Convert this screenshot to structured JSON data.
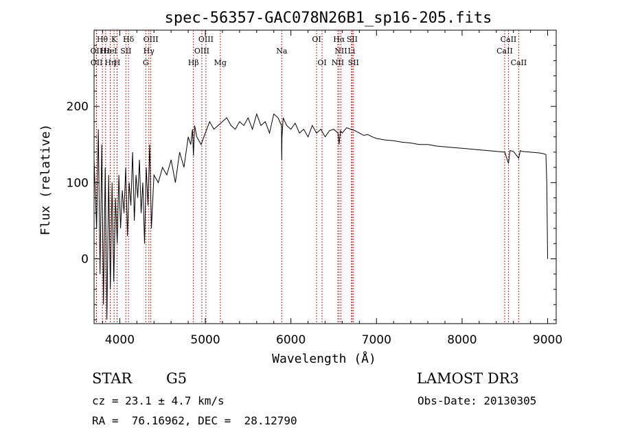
{
  "chart_data": {
    "type": "line",
    "title": "spec-56357-GAC078N26B1_sp16-205.fits",
    "xlabel": "Wavelength (Å)",
    "ylabel": "Flux (relative)",
    "xlim": [
      3700,
      9100
    ],
    "ylim": [
      -85,
      300
    ],
    "xticks": [
      4000,
      5000,
      6000,
      7000,
      8000,
      9000
    ],
    "xtick_labels": [
      "4000",
      "5000",
      "6000",
      "7000",
      "8000",
      "9000"
    ],
    "yticks": [
      0,
      100,
      200
    ],
    "ytick_labels": [
      "0",
      "100",
      "200"
    ],
    "grid": false,
    "series": [
      {
        "name": "spectrum",
        "x": [
          3700,
          3730,
          3750,
          3770,
          3790,
          3810,
          3830,
          3850,
          3870,
          3890,
          3910,
          3930,
          3950,
          3970,
          3990,
          4010,
          4030,
          4050,
          4070,
          4090,
          4110,
          4130,
          4150,
          4170,
          4190,
          4210,
          4230,
          4250,
          4270,
          4290,
          4310,
          4330,
          4350,
          4370,
          4400,
          4450,
          4500,
          4550,
          4600,
          4650,
          4700,
          4750,
          4800,
          4830,
          4850,
          4861,
          4875,
          4900,
          4950,
          5000,
          5050,
          5100,
          5150,
          5200,
          5250,
          5300,
          5350,
          5400,
          5450,
          5500,
          5550,
          5600,
          5650,
          5700,
          5750,
          5800,
          5850,
          5890,
          5893,
          5896,
          5910,
          5950,
          6000,
          6050,
          6100,
          6150,
          6200,
          6250,
          6300,
          6350,
          6400,
          6450,
          6500,
          6550,
          6563,
          6580,
          6600,
          6650,
          6700,
          6750,
          6800,
          6850,
          6900,
          6950,
          7000,
          7100,
          7200,
          7300,
          7400,
          7500,
          7600,
          7700,
          7800,
          7900,
          8000,
          8100,
          8200,
          8300,
          8400,
          8500,
          8542,
          8560,
          8600,
          8662,
          8680,
          8700,
          8800,
          8900,
          8950,
          8980,
          8990,
          9000
        ],
        "y": [
          130,
          40,
          170,
          -20,
          150,
          -60,
          120,
          -80,
          110,
          -40,
          100,
          -30,
          80,
          20,
          110,
          40,
          90,
          60,
          120,
          30,
          100,
          70,
          140,
          50,
          110,
          80,
          130,
          60,
          100,
          20,
          120,
          70,
          150,
          40,
          110,
          100,
          120,
          110,
          130,
          100,
          140,
          120,
          160,
          150,
          170,
          135,
          175,
          160,
          150,
          165,
          180,
          170,
          175,
          180,
          185,
          175,
          170,
          180,
          175,
          185,
          170,
          190,
          175,
          180,
          165,
          190,
          185,
          175,
          130,
          160,
          185,
          175,
          170,
          178,
          165,
          170,
          160,
          175,
          165,
          170,
          160,
          168,
          170,
          165,
          150,
          168,
          165,
          172,
          170,
          168,
          165,
          162,
          163,
          160,
          158,
          156,
          155,
          153,
          152,
          150,
          150,
          148,
          147,
          146,
          145,
          144,
          143,
          142,
          141,
          140,
          125,
          142,
          141,
          132,
          142,
          141,
          140,
          139,
          138,
          137,
          100,
          0
        ]
      }
    ],
    "lines": [
      {
        "label": "Hθ",
        "x": 3797,
        "row": 1
      },
      {
        "label": "OII",
        "x": 3727,
        "row": 2
      },
      {
        "label": "OII",
        "x": 3729,
        "row": 3
      },
      {
        "label": "Hε",
        "x": 3835,
        "row": 2
      },
      {
        "label": "Hη",
        "x": 3889,
        "row": 3
      },
      {
        "label": "K",
        "x": 3934,
        "row": 1
      },
      {
        "label": "H",
        "x": 3969,
        "row": 3
      },
      {
        "label": "HeI",
        "x": 3889,
        "row": 2
      },
      {
        "label": "SII",
        "x": 4072,
        "row": 2
      },
      {
        "label": "Hδ",
        "x": 4102,
        "row": 1
      },
      {
        "label": "OIII",
        "x": 4363,
        "row": 1
      },
      {
        "label": "Hγ",
        "x": 4340,
        "row": 2
      },
      {
        "label": "G",
        "x": 4304,
        "row": 3
      },
      {
        "label": "Hβ",
        "x": 4861,
        "row": 3
      },
      {
        "label": "OIII",
        "x": 5007,
        "row": 1
      },
      {
        "label": "OIII",
        "x": 4959,
        "row": 2
      },
      {
        "label": "Mg",
        "x": 5175,
        "row": 3
      },
      {
        "label": "Na",
        "x": 5893,
        "row": 2
      },
      {
        "label": "OI",
        "x": 6300,
        "row": 1
      },
      {
        "label": "OI",
        "x": 6364,
        "row": 3
      },
      {
        "label": "Hα",
        "x": 6563,
        "row": 1
      },
      {
        "label": "SII",
        "x": 6716,
        "row": 1
      },
      {
        "label": "NII",
        "x": 6584,
        "row": 2
      },
      {
        "label": "Li",
        "x": 6708,
        "row": 2
      },
      {
        "label": "NII",
        "x": 6548,
        "row": 3
      },
      {
        "label": "SII",
        "x": 6731,
        "row": 3
      },
      {
        "label": "CaII",
        "x": 8542,
        "row": 1
      },
      {
        "label": "CaII",
        "x": 8498,
        "row": 2
      },
      {
        "label": "CaII",
        "x": 8662,
        "row": 3
      }
    ]
  },
  "info": {
    "class_label": "STAR",
    "subclass": "G5",
    "survey": "LAMOST DR3",
    "cz": "cz = 23.1 ± 4.7 km/s",
    "obs_date": "Obs-Date: 20130305",
    "coords": "RA =  76.16962, DEC =  28.12790"
  },
  "colors": {
    "line_marker": "#b22222",
    "spectrum": "#000000",
    "axes": "#000000"
  }
}
